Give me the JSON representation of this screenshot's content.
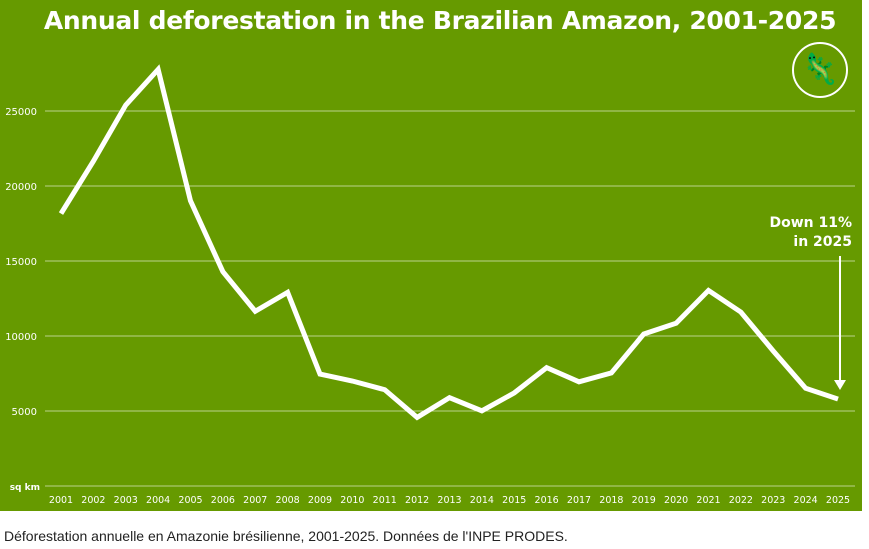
{
  "chart_data": {
    "type": "line",
    "title": "Annual deforestation in the Brazilian Amazon, 2001-2025",
    "xlabel": "",
    "ylabel": "sq km",
    "ylim": [
      0,
      28000
    ],
    "yticks": [
      "5000",
      "10000",
      "15000",
      "20000",
      "25000"
    ],
    "grid": true,
    "categories": [
      "2001",
      "2002",
      "2003",
      "2004",
      "2005",
      "2006",
      "2007",
      "2008",
      "2009",
      "2010",
      "2011",
      "2012",
      "2013",
      "2014",
      "2015",
      "2016",
      "2017",
      "2018",
      "2019",
      "2020",
      "2021",
      "2022",
      "2023",
      "2024",
      "2025"
    ],
    "series": [
      {
        "name": "Deforestation",
        "values": [
          18165,
          21650,
          25396,
          27772,
          19014,
          14286,
          11651,
          12911,
          7464,
          7000,
          6418,
          4571,
          5891,
          5012,
          6207,
          7893,
          6947,
          7536,
          10129,
          10851,
          13038,
          11594,
          9001,
          6518,
          5796
        ]
      }
    ],
    "annotation": {
      "line1": "Down 11%",
      "line2": "in 2025"
    },
    "colors": {
      "background": "#669a00",
      "line": "#ffffff"
    }
  },
  "caption": "Déforestation annuelle en Amazonie brésilienne, 2001-2025. Données de l'INPE PRODES.",
  "logo": {
    "icon": "lizard-icon"
  }
}
